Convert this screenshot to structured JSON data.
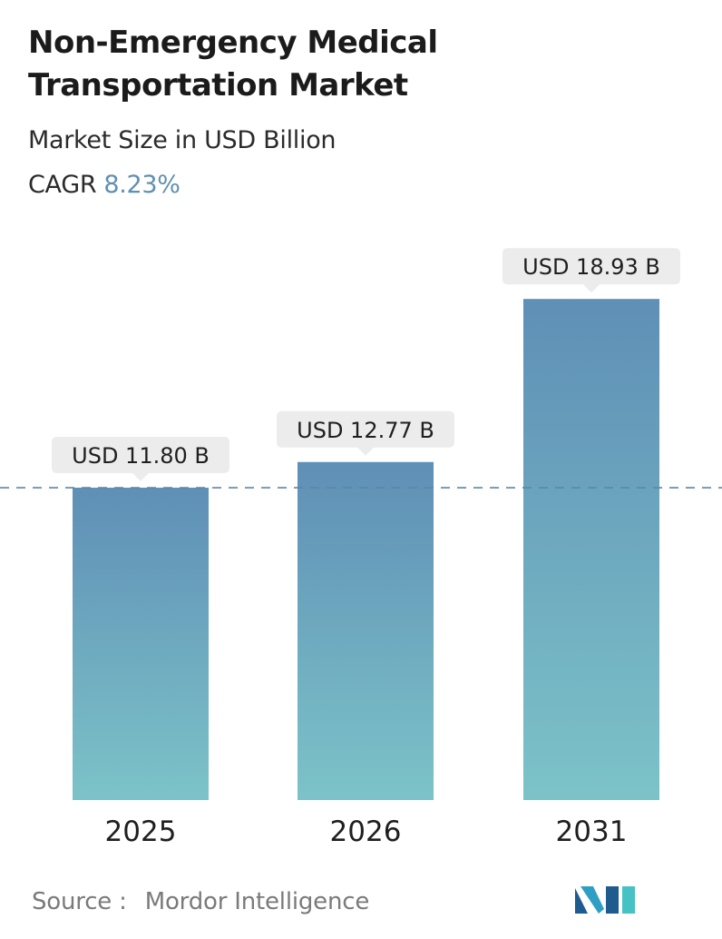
{
  "header": {
    "title": "Non-Emergency Medical Transportation Market",
    "subtitle": "Market Size in USD Billion",
    "cagr_label": "CAGR",
    "cagr_value": "8.23%"
  },
  "chart_data": {
    "type": "bar",
    "title": "Non-Emergency Medical Transportation Market",
    "subtitle": "Market Size in USD Billion",
    "categories": [
      "2025",
      "2026",
      "2031"
    ],
    "values": [
      11.8,
      12.77,
      18.93
    ],
    "data_labels": [
      "USD 11.80 B",
      "USD 12.77 B",
      "USD 18.93 B"
    ],
    "unit": "USD Billion",
    "reference_line": {
      "value": 11.8,
      "style": "dashed"
    },
    "grid": false,
    "legend": "none",
    "colors": {
      "bar_top": "#5f8fb6",
      "bar_bottom": "#7cc3c8",
      "label_bg": "#ececec",
      "reference_line": "#5b87a8"
    }
  },
  "footer": {
    "source_label": "Source :",
    "source_name": "Mordor Intelligence",
    "logo_colors": [
      "#1f5b8f",
      "#2e9fc4",
      "#46c2c4"
    ]
  }
}
